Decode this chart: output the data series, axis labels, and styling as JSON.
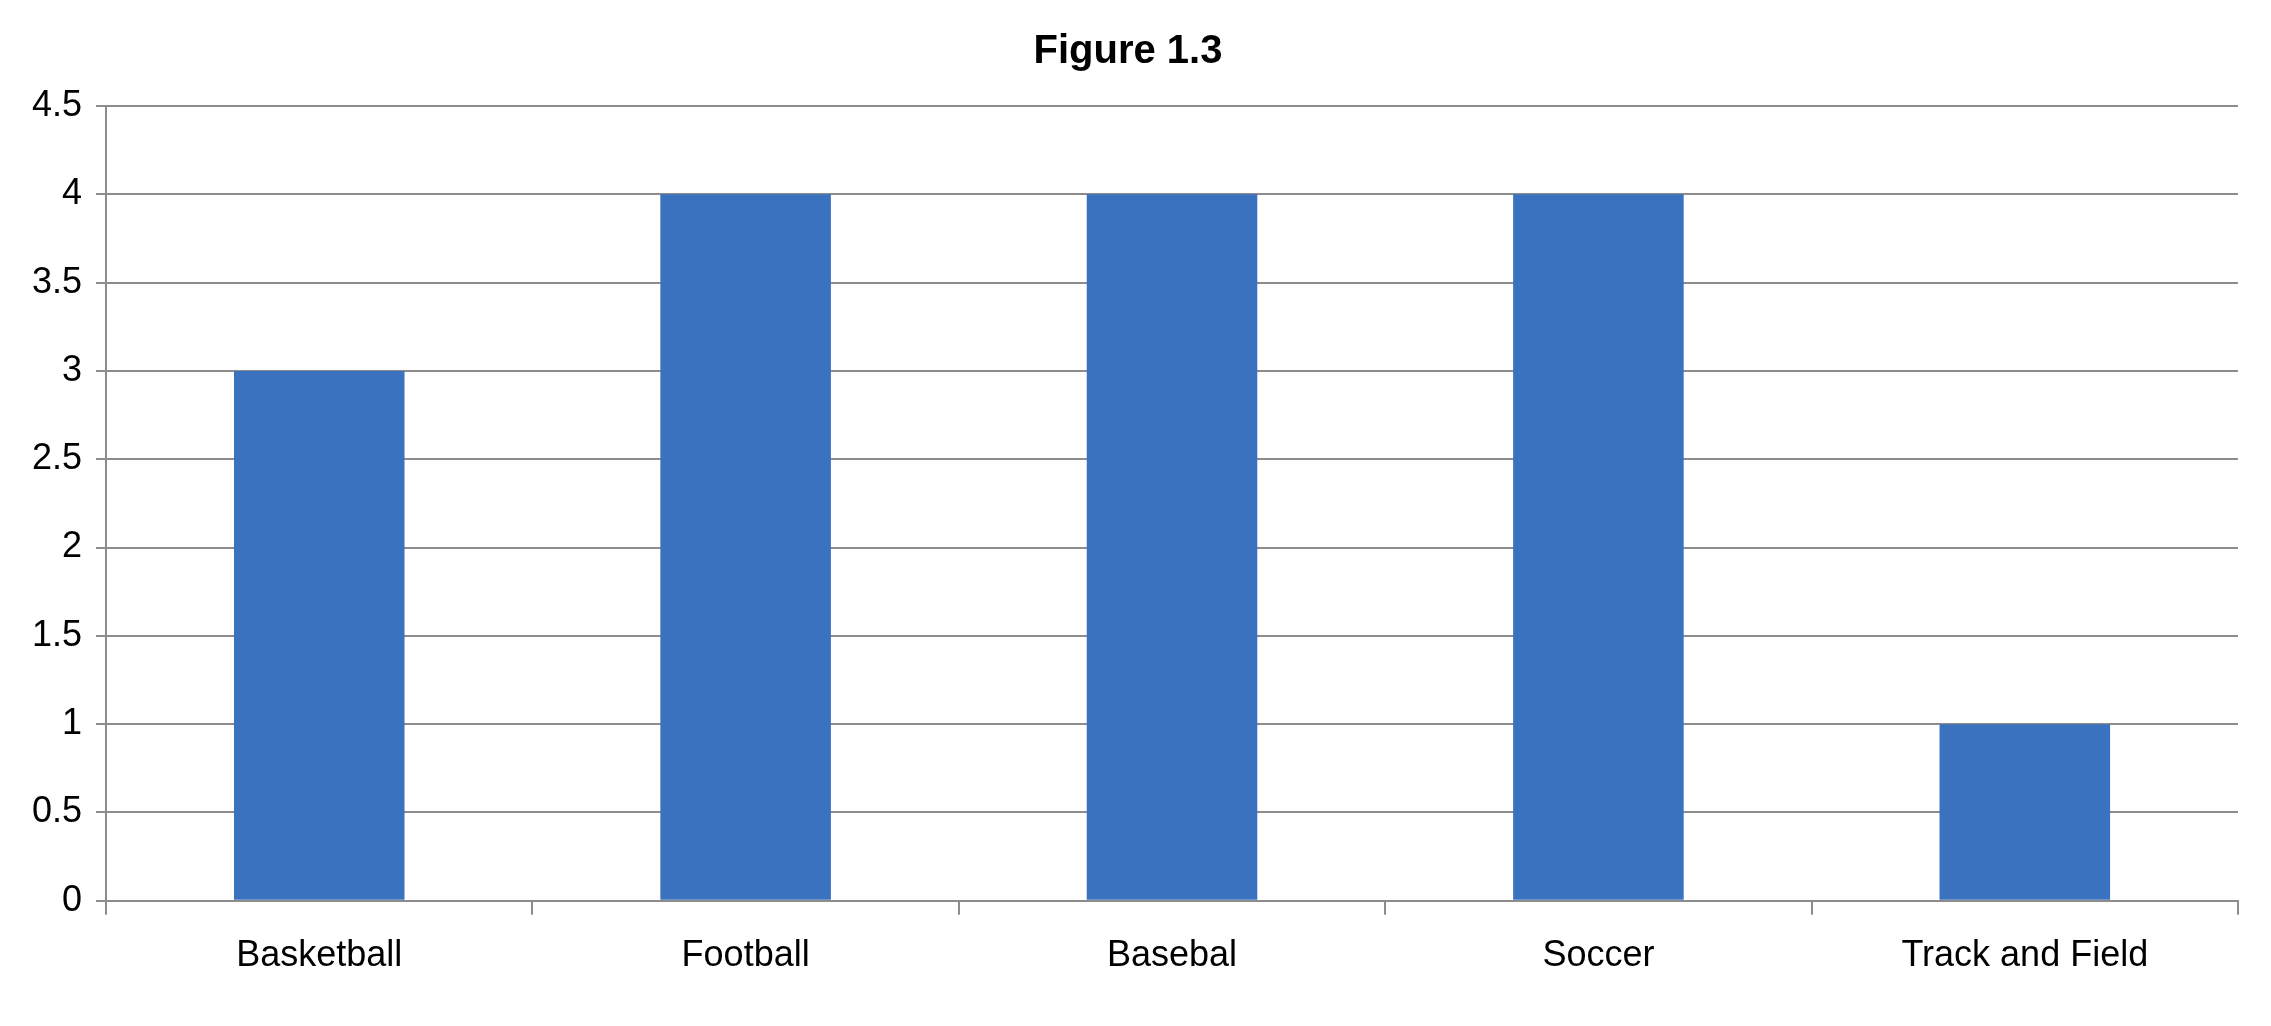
{
  "chart_data": {
    "type": "bar",
    "title": "Figure 1.3",
    "categories": [
      "Basketball",
      "Football",
      "Basebal",
      "Soccer",
      "Track and Field"
    ],
    "values": [
      3,
      4,
      4,
      4,
      1
    ],
    "color": "#3a72c0",
    "ylim": [
      0,
      4.5
    ],
    "yticks": [
      0,
      0.5,
      1,
      1.5,
      2,
      2.5,
      3,
      3.5,
      4,
      4.5
    ],
    "grid": "y",
    "legend": false
  }
}
